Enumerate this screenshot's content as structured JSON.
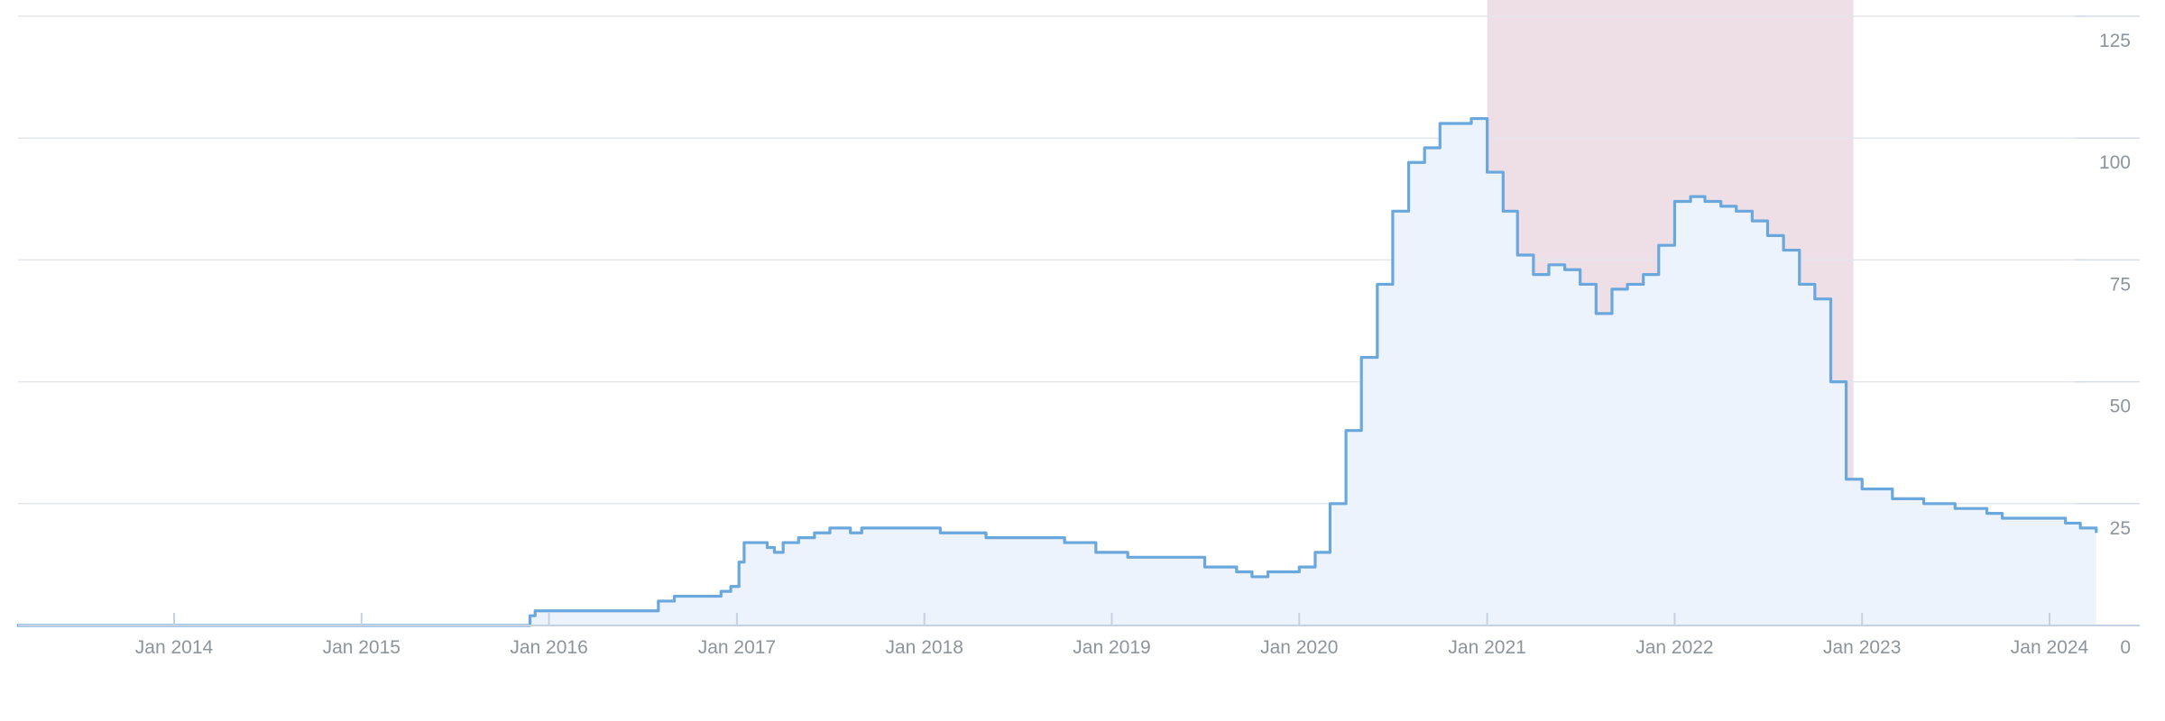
{
  "chart_data": {
    "type": "area",
    "title": "",
    "xlabel": "",
    "ylabel": "",
    "ylim": [
      0,
      125
    ],
    "xlim": [
      "2013-03-01",
      "2024-04-01"
    ],
    "y_ticks": [
      0,
      25,
      50,
      75,
      100,
      125
    ],
    "y_tick_labels": [
      "0",
      "25",
      "50",
      "75",
      "100",
      "125"
    ],
    "x_ticks": [
      "2014-01-01",
      "2015-01-01",
      "2016-01-01",
      "2017-01-01",
      "2018-01-01",
      "2019-01-01",
      "2020-01-01",
      "2021-01-01",
      "2022-01-01",
      "2023-01-01",
      "2024-01-01"
    ],
    "x_tick_labels": [
      "Jan 2014",
      "Jan 2015",
      "Jan 2016",
      "Jan 2017",
      "Jan 2018",
      "Jan 2019",
      "Jan 2020",
      "Jan 2021",
      "Jan 2022",
      "Jan 2023",
      "Jan 2024"
    ],
    "grid": true,
    "y_axis_position": "right",
    "highlight_band": {
      "start": "2021-01-01",
      "end": "2022-12-15"
    },
    "colors": {
      "line": "#6aa7dc",
      "area": "#edf3fc",
      "band": "#eedfe7"
    },
    "series": [
      {
        "step": true,
        "points": [
          [
            "2013-03-01",
            0
          ],
          [
            "2015-11-20",
            0
          ],
          [
            "2015-11-25",
            2
          ],
          [
            "2015-12-05",
            3
          ],
          [
            "2016-08-01",
            5
          ],
          [
            "2016-09-01",
            6
          ],
          [
            "2016-12-01",
            7
          ],
          [
            "2016-12-20",
            8
          ],
          [
            "2017-01-05",
            13
          ],
          [
            "2017-01-15",
            17
          ],
          [
            "2017-03-01",
            16
          ],
          [
            "2017-03-15",
            15
          ],
          [
            "2017-04-01",
            17
          ],
          [
            "2017-05-01",
            18
          ],
          [
            "2017-06-01",
            19
          ],
          [
            "2017-07-01",
            20
          ],
          [
            "2017-08-10",
            19
          ],
          [
            "2017-09-01",
            20
          ],
          [
            "2017-10-01",
            20
          ],
          [
            "2017-11-01",
            20
          ],
          [
            "2017-12-01",
            20
          ],
          [
            "2018-01-01",
            20
          ],
          [
            "2018-02-01",
            19
          ],
          [
            "2018-05-01",
            18
          ],
          [
            "2018-10-01",
            17
          ],
          [
            "2018-12-01",
            15
          ],
          [
            "2019-02-01",
            14
          ],
          [
            "2019-07-01",
            12
          ],
          [
            "2019-09-01",
            11
          ],
          [
            "2019-10-01",
            10
          ],
          [
            "2019-11-01",
            11
          ],
          [
            "2020-01-01",
            12
          ],
          [
            "2020-02-01",
            15
          ],
          [
            "2020-03-01",
            25
          ],
          [
            "2020-04-01",
            40
          ],
          [
            "2020-05-01",
            55
          ],
          [
            "2020-06-01",
            70
          ],
          [
            "2020-07-01",
            85
          ],
          [
            "2020-08-01",
            95
          ],
          [
            "2020-09-01",
            98
          ],
          [
            "2020-10-01",
            103
          ],
          [
            "2020-12-01",
            104
          ],
          [
            "2021-01-01",
            93
          ],
          [
            "2021-02-01",
            85
          ],
          [
            "2021-03-01",
            76
          ],
          [
            "2021-04-01",
            72
          ],
          [
            "2021-05-01",
            74
          ],
          [
            "2021-06-01",
            73
          ],
          [
            "2021-07-01",
            70
          ],
          [
            "2021-08-01",
            64
          ],
          [
            "2021-09-01",
            69
          ],
          [
            "2021-10-01",
            70
          ],
          [
            "2021-11-01",
            72
          ],
          [
            "2021-12-01",
            78
          ],
          [
            "2022-01-01",
            87
          ],
          [
            "2022-02-01",
            88
          ],
          [
            "2022-03-01",
            87
          ],
          [
            "2022-04-01",
            86
          ],
          [
            "2022-05-01",
            85
          ],
          [
            "2022-06-01",
            83
          ],
          [
            "2022-07-01",
            80
          ],
          [
            "2022-08-01",
            77
          ],
          [
            "2022-09-01",
            70
          ],
          [
            "2022-10-01",
            67
          ],
          [
            "2022-11-01",
            50
          ],
          [
            "2022-12-01",
            30
          ],
          [
            "2023-01-01",
            28
          ],
          [
            "2023-03-01",
            26
          ],
          [
            "2023-05-01",
            25
          ],
          [
            "2023-07-01",
            24
          ],
          [
            "2023-08-01",
            24
          ],
          [
            "2023-09-01",
            23
          ],
          [
            "2023-10-01",
            22
          ],
          [
            "2023-11-01",
            22
          ],
          [
            "2024-01-01",
            22
          ],
          [
            "2024-02-01",
            21
          ],
          [
            "2024-03-01",
            20
          ],
          [
            "2024-04-01",
            19
          ]
        ]
      }
    ]
  }
}
